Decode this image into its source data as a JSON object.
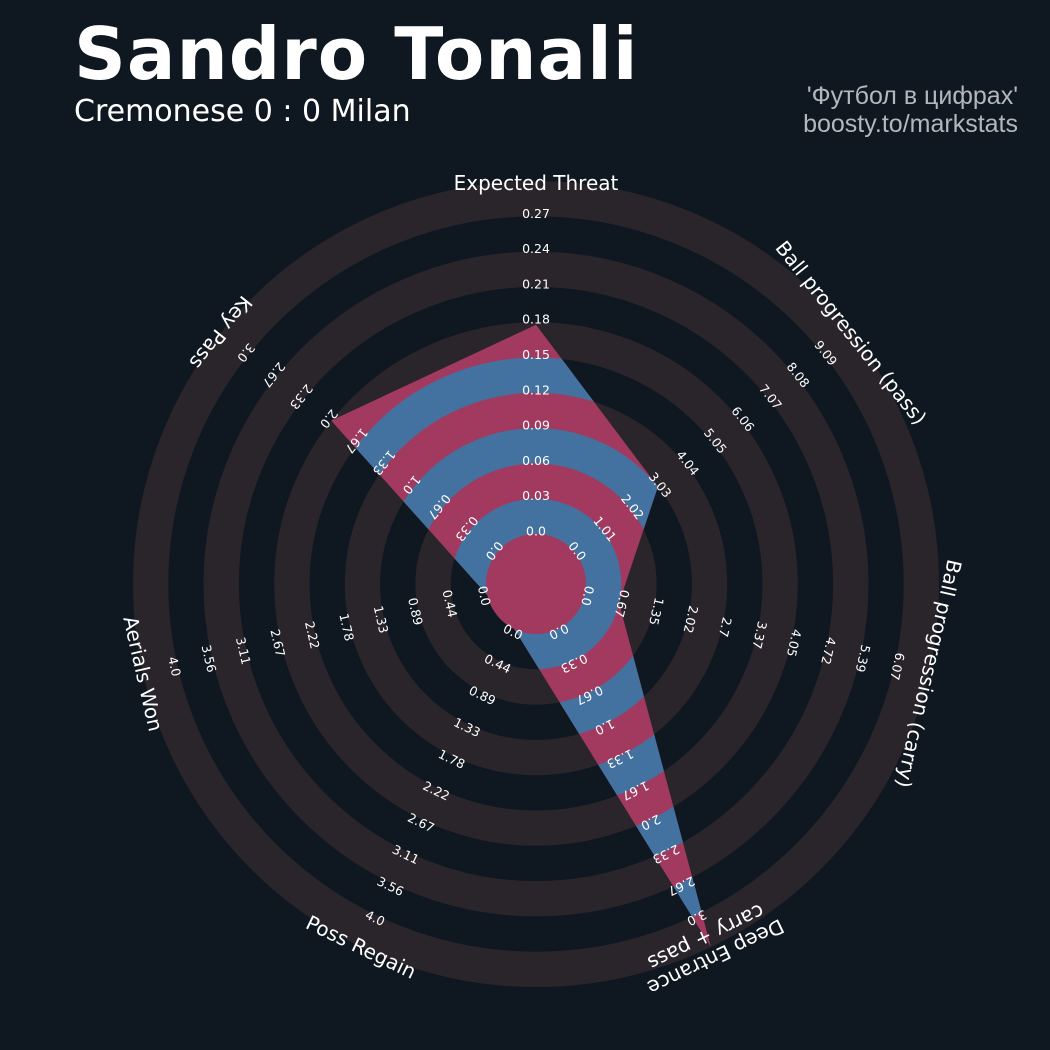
{
  "header": {
    "title": "Sandro Tonali",
    "subtitle": "Cremonese 0 : 0 Milan",
    "credit_line1": "'Футбол в цифрах'",
    "credit_line2": "boosty.to/markstats"
  },
  "colors": {
    "background": "#0f1820",
    "ring_band": "#2a252b",
    "fill_blue": "#4372a0",
    "fill_red": "#a23a60",
    "text": "#ffffff",
    "credit_text": "#b4b8bc"
  },
  "chart_data": {
    "type": "radar",
    "title": "Sandro Tonali",
    "subtitle": "Cremonese 0 : 0 Milan",
    "categories": [
      [
        "Expected Threat"
      ],
      [
        "Ball progression (pass)"
      ],
      [
        "Ball progression (carry)"
      ],
      [
        "Deep Entrance",
        "carry + pass"
      ],
      [
        "Poss Regain"
      ],
      [
        "Aerials Won"
      ],
      [
        "Key Pass"
      ]
    ],
    "ranges": [
      [
        0,
        0.27
      ],
      [
        0,
        10.1
      ],
      [
        0,
        6.74
      ],
      [
        0,
        3.0
      ],
      [
        0,
        4.44
      ],
      [
        0,
        4.44
      ],
      [
        0,
        3.33
      ]
    ],
    "values": [
      0.16,
      3.03,
      0.67,
      3.0,
      0,
      0,
      2.0
    ],
    "tick_labels": [
      [
        "0.0",
        "0.03",
        "0.06",
        "0.09",
        "0.12",
        "0.15",
        "0.18",
        "0.21",
        "0.24",
        "0.27"
      ],
      [
        "0.0",
        "1.01",
        "2.02",
        "3.03",
        "4.04",
        "5.05",
        "6.06",
        "7.07",
        "8.08",
        "9.09"
      ],
      [
        "0.0",
        "0.67",
        "1.35",
        "2.02",
        "2.7",
        "3.37",
        "4.05",
        "4.72",
        "5.39",
        "6.07"
      ],
      [
        "0.0",
        "0.33",
        "0.67",
        "1.0",
        "1.33",
        "1.67",
        "2.0",
        "2.33",
        "2.67",
        "3.0"
      ],
      [
        "0.0",
        "0.44",
        "0.89",
        "1.33",
        "1.78",
        "2.22",
        "2.67",
        "3.11",
        "3.56",
        "4.0"
      ],
      [
        "0.0",
        "0.44",
        "0.89",
        "1.33",
        "1.78",
        "2.22",
        "2.67",
        "3.11",
        "3.56",
        "4.0"
      ],
      [
        "0.0",
        "0.33",
        "0.67",
        "1.0",
        "1.33",
        "1.67",
        "2.0",
        "2.33",
        "2.67",
        "3.0"
      ]
    ]
  }
}
